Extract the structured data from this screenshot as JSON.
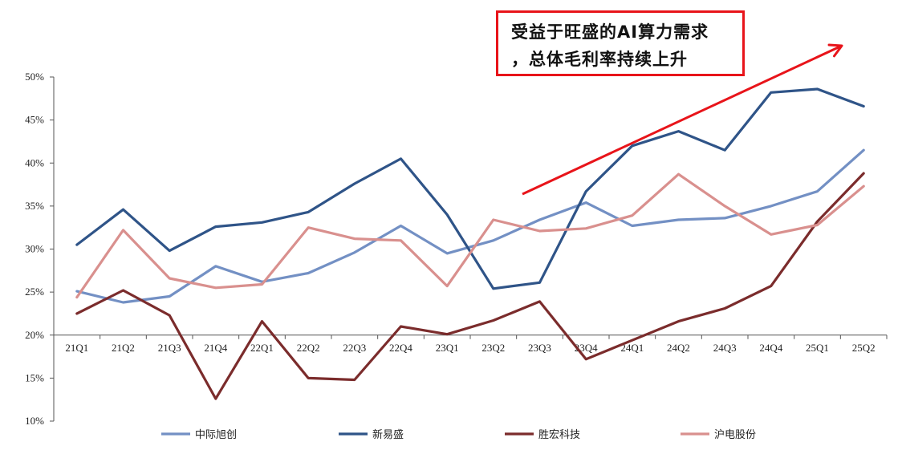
{
  "chart_data": {
    "type": "line",
    "categories": [
      "21Q1",
      "21Q2",
      "21Q3",
      "21Q4",
      "22Q1",
      "22Q2",
      "22Q3",
      "22Q4",
      "23Q1",
      "23Q2",
      "23Q3",
      "23Q4",
      "24Q1",
      "24Q2",
      "24Q3",
      "24Q4",
      "25Q1",
      "25Q2"
    ],
    "series": [
      {
        "name": "中际旭创",
        "color": "#7390c4",
        "values": [
          25.1,
          23.8,
          24.5,
          28.0,
          26.2,
          27.2,
          29.6,
          32.7,
          29.5,
          31.0,
          33.4,
          35.4,
          32.7,
          33.4,
          33.6,
          35.0,
          36.7,
          41.5
        ]
      },
      {
        "name": "新易盛",
        "color": "#2f5488",
        "values": [
          30.5,
          34.6,
          29.8,
          32.6,
          33.1,
          34.3,
          37.6,
          40.5,
          34.0,
          25.4,
          26.1,
          36.7,
          42.0,
          43.7,
          41.5,
          48.2,
          48.6,
          46.6
        ]
      },
      {
        "name": "胜宏科技",
        "color": "#7b2c2c",
        "values": [
          22.5,
          25.2,
          22.3,
          12.6,
          21.6,
          15.0,
          14.8,
          21.0,
          20.1,
          21.7,
          23.9,
          17.2,
          19.4,
          21.6,
          23.1,
          25.7,
          33.2,
          38.8
        ]
      },
      {
        "name": "沪电股份",
        "color": "#d9908e",
        "values": [
          24.4,
          32.2,
          26.6,
          25.5,
          25.9,
          32.5,
          31.2,
          31.0,
          25.7,
          33.4,
          32.1,
          32.4,
          33.9,
          38.7,
          35.0,
          31.7,
          32.8,
          37.3
        ]
      }
    ],
    "yticks": [
      "10%",
      "15%",
      "20%",
      "25%",
      "30%",
      "35%",
      "40%",
      "45%",
      "50%"
    ],
    "ylim": [
      10,
      50
    ],
    "x_axis_crosses_at": 20,
    "legend_position": "bottom",
    "grid": false,
    "annotation": {
      "line1": "受益于旺盛的AI算力需求",
      "line2": "，总体毛利率持续上升",
      "box_color": "#e8141a",
      "arrow_color": "#e8141a"
    }
  }
}
